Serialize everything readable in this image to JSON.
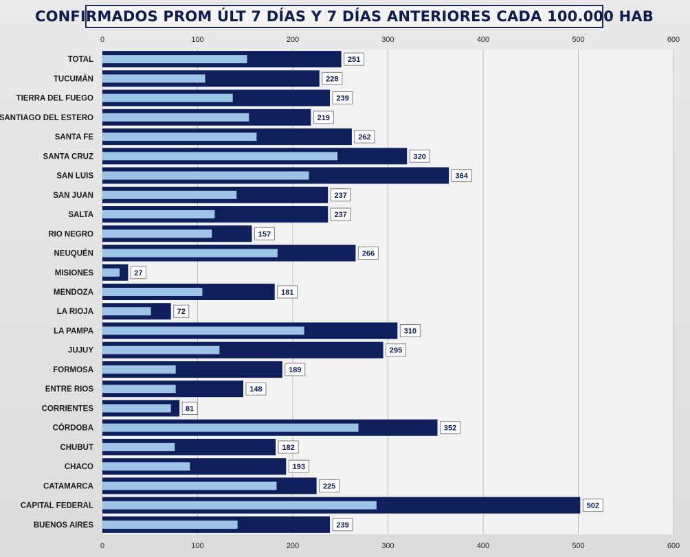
{
  "chart_data": {
    "type": "bar",
    "orientation": "horizontal",
    "title": "CONFIRMADOS PROM ÚLT 7 DÍAS Y 7 DÍAS ANTERIORES CADA 100.000 HAB",
    "xlim": [
      0,
      600
    ],
    "x_ticks": [
      0,
      100,
      200,
      300,
      400,
      500,
      600
    ],
    "x_axis_position": "top and bottom",
    "grid": true,
    "categories": [
      "TOTAL",
      "TUCUMÁN",
      "TIERRA  DEL FUEGO",
      "SANTIAGO  DEL ESTERO",
      "SANTA  FE",
      "SANTA  CRUZ",
      "SAN LUIS",
      "SAN JUAN",
      "SALTA",
      "RIO  NEGRO",
      "NEUQUÉN",
      "MISIONES",
      "MENDOZA",
      "LA RIOJA",
      "LA PAMPA",
      "JUJUY",
      "FORMOSA",
      "ENTRE  RIOS",
      "CORRIENTES",
      "CÓRDOBA",
      "CHUBUT",
      "CHACO",
      "CATAMARCA",
      "CAPITAL  FEDERAL",
      "BUENOS  AIRES"
    ],
    "series": [
      {
        "color": "#0e1f5b",
        "values": [
          251,
          228,
          239,
          219,
          262,
          320,
          364,
          237,
          237,
          157,
          266,
          27,
          181,
          72,
          310,
          295,
          189,
          148,
          81,
          352,
          182,
          193,
          225,
          502,
          239
        ],
        "data_labels": [
          "251",
          "228",
          "239",
          "219",
          "262",
          "320",
          "364",
          "237",
          "237",
          "157",
          "266",
          "27",
          "181",
          "72",
          "310",
          "295",
          "189",
          "148",
          "81",
          "352",
          "182",
          "193",
          "225",
          "502",
          "239"
        ]
      },
      {
        "color": "#9dc3e6",
        "values": [
          152,
          108,
          137,
          154,
          162,
          247,
          217,
          141,
          118,
          115,
          184,
          18,
          105,
          51,
          212,
          123,
          77,
          77,
          72,
          269,
          76,
          92,
          183,
          288,
          142
        ]
      }
    ]
  },
  "colors": {
    "plot_background": "#f2f2f2",
    "grid": "#bdbdbd",
    "title_border": "#1f2a5a"
  }
}
